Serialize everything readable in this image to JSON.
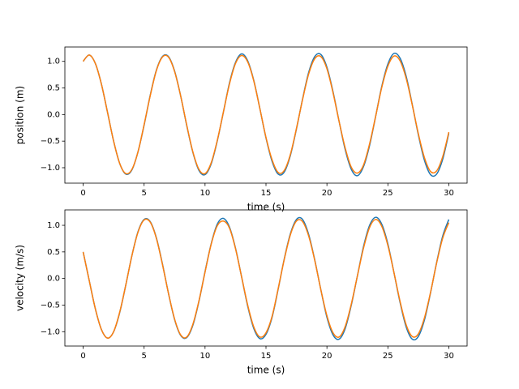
{
  "chart_data": [
    {
      "type": "line",
      "xlabel": "time (s)",
      "ylabel": "position (m)",
      "x": [
        0,
        0.5,
        1,
        1.5,
        2,
        2.5,
        3,
        3.5,
        4,
        4.5,
        5,
        5.5,
        6,
        6.5,
        7,
        7.5,
        8,
        8.5,
        9,
        9.5,
        10,
        10.5,
        11,
        11.5,
        12,
        12.5,
        13,
        13.5,
        14,
        14.5,
        15,
        15.5,
        16,
        16.5,
        17,
        17.5,
        18,
        18.5,
        19,
        19.5,
        20,
        20.5,
        21,
        21.5,
        22,
        22.5,
        23,
        23.5,
        24,
        24.5,
        25,
        25.5,
        26,
        26.5,
        27,
        27.5,
        28,
        28.5,
        29,
        29.5,
        30
      ],
      "series": [
        {
          "color": "#1f77b4",
          "values": [
            1.0,
            1.12,
            0.96,
            0.57,
            0.04,
            -0.5,
            -0.92,
            -1.12,
            -1.04,
            -0.7,
            -0.2,
            0.36,
            0.83,
            1.09,
            1.09,
            0.82,
            0.35,
            -0.21,
            -0.71,
            -1.05,
            -1.13,
            -0.93,
            -0.5,
            0.04,
            0.59,
            0.98,
            1.14,
            1.01,
            0.64,
            0.11,
            -0.44,
            -0.88,
            -1.12,
            -1.08,
            -0.77,
            -0.27,
            0.29,
            0.79,
            1.09,
            1.13,
            0.89,
            0.43,
            -0.13,
            -0.66,
            -1.03,
            -1.15,
            -0.98,
            -0.58,
            -0.03,
            0.53,
            0.95,
            1.15,
            1.06,
            0.72,
            0.19,
            -0.38,
            -0.86,
            -1.13,
            -1.12,
            -0.84,
            -0.35
          ]
        },
        {
          "color": "#ff7f0e",
          "values": [
            1.0,
            1.12,
            0.96,
            0.57,
            0.04,
            -0.5,
            -0.92,
            -1.11,
            -1.03,
            -0.7,
            -0.19,
            0.35,
            0.82,
            1.08,
            1.08,
            0.81,
            0.35,
            -0.2,
            -0.7,
            -1.03,
            -1.11,
            -0.91,
            -0.49,
            0.04,
            0.57,
            0.96,
            1.11,
            0.99,
            0.63,
            0.11,
            -0.43,
            -0.85,
            -1.09,
            -1.05,
            -0.75,
            -0.26,
            0.28,
            0.76,
            1.05,
            1.09,
            0.86,
            0.41,
            -0.13,
            -0.63,
            -0.99,
            -1.1,
            -0.95,
            -0.55,
            -0.03,
            0.51,
            0.91,
            1.1,
            1.01,
            0.68,
            0.18,
            -0.36,
            -0.81,
            -1.07,
            -1.06,
            -0.79,
            -0.33
          ]
        }
      ],
      "xlim": [
        -1.5,
        31.5
      ],
      "xticks": [
        0,
        5,
        10,
        15,
        20,
        25,
        30
      ],
      "ylim": [
        -1.29,
        1.27
      ],
      "yticks": [
        {
          "value": -1,
          "label": "−1.0"
        },
        {
          "value": -0.5,
          "label": "−0.5"
        },
        {
          "value": 0,
          "label": "0.0"
        },
        {
          "value": 0.5,
          "label": "0.5"
        },
        {
          "value": 1,
          "label": "1.0"
        }
      ]
    },
    {
      "type": "line",
      "xlabel": "time (s)",
      "ylabel": "velocity (m/s)",
      "x": [
        0,
        0.5,
        1,
        1.5,
        2,
        2.5,
        3,
        3.5,
        4,
        4.5,
        5,
        5.5,
        6,
        6.5,
        7,
        7.5,
        8,
        8.5,
        9,
        9.5,
        10,
        10.5,
        11,
        11.5,
        12,
        12.5,
        13,
        13.5,
        14,
        14.5,
        15,
        15.5,
        16,
        16.5,
        17,
        17.5,
        18,
        18.5,
        19,
        19.5,
        20,
        20.5,
        21,
        21.5,
        22,
        22.5,
        23,
        23.5,
        24,
        24.5,
        25,
        25.5,
        26,
        26.5,
        27,
        27.5,
        28,
        28.5,
        29,
        29.5,
        30
      ],
      "series": [
        {
          "color": "#1f77b4",
          "values": [
            0.5,
            -0.04,
            -0.57,
            -0.96,
            -1.12,
            -1.0,
            -0.64,
            -0.12,
            0.43,
            0.88,
            1.11,
            1.07,
            0.77,
            0.28,
            -0.28,
            -0.77,
            -1.07,
            -1.11,
            -0.88,
            -0.43,
            0.13,
            0.65,
            1.02,
            1.13,
            0.97,
            0.57,
            0.03,
            -0.52,
            -0.94,
            -1.13,
            -1.05,
            -0.73,
            -0.2,
            0.37,
            0.84,
            1.11,
            1.11,
            0.83,
            0.35,
            -0.21,
            -0.73,
            -1.06,
            -1.14,
            -0.94,
            -0.5,
            0.05,
            0.6,
            1.0,
            1.15,
            1.02,
            0.65,
            0.11,
            -0.45,
            -0.91,
            -1.14,
            -1.09,
            -0.78,
            -0.27,
            0.3,
            0.8,
            1.11
          ]
        },
        {
          "color": "#ff7f0e",
          "values": [
            0.5,
            -0.04,
            -0.57,
            -0.96,
            -1.12,
            -1.0,
            -0.63,
            -0.12,
            0.43,
            0.87,
            1.1,
            1.06,
            0.76,
            0.27,
            -0.28,
            -0.76,
            -1.06,
            -1.1,
            -0.86,
            -0.42,
            0.12,
            0.64,
            0.99,
            1.08,
            0.95,
            0.56,
            0.03,
            -0.5,
            -0.91,
            -1.1,
            -1.02,
            -0.71,
            -0.19,
            0.36,
            0.82,
            1.08,
            1.07,
            0.8,
            0.34,
            -0.21,
            -0.7,
            -1.02,
            -1.1,
            -0.9,
            -0.48,
            0.05,
            0.57,
            0.96,
            1.11,
            0.98,
            0.62,
            0.11,
            -0.43,
            -0.87,
            -1.09,
            -1.04,
            -0.74,
            -0.26,
            0.29,
            0.76,
            1.05
          ]
        }
      ],
      "xlim": [
        -1.5,
        31.5
      ],
      "xticks": [
        0,
        5,
        10,
        15,
        20,
        25,
        30
      ],
      "ylim": [
        -1.27,
        1.29
      ],
      "yticks": [
        {
          "value": -1,
          "label": "−1.0"
        },
        {
          "value": -0.5,
          "label": "−0.5"
        },
        {
          "value": 0,
          "label": "0.0"
        },
        {
          "value": 0.5,
          "label": "0.5"
        },
        {
          "value": 1,
          "label": "1.0"
        }
      ]
    }
  ]
}
